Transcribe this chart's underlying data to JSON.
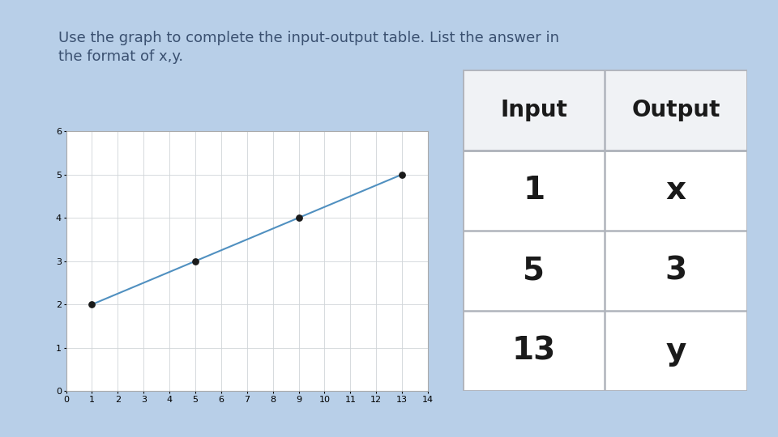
{
  "title": "Use the graph to complete the input-output table. List the answer in\nthe format of x,y.",
  "title_color": "#3a5070",
  "background_color": "#b8cfe8",
  "graph_bg": "#ffffff",
  "graph_border_color": "#cccccc",
  "line_color": "#5090c0",
  "point_color": "#1a1a1a",
  "points_x": [
    1,
    5,
    9,
    13
  ],
  "points_y": [
    2,
    3,
    4,
    5
  ],
  "xlim": [
    0,
    14
  ],
  "ylim": [
    0,
    6
  ],
  "xticks": [
    0,
    1,
    2,
    3,
    4,
    5,
    6,
    7,
    8,
    9,
    10,
    11,
    12,
    13,
    14
  ],
  "yticks": [
    0,
    1,
    2,
    3,
    4,
    5,
    6
  ],
  "table_header": [
    "Input",
    "Output"
  ],
  "table_rows": [
    [
      "1",
      "x"
    ],
    [
      "5",
      "3"
    ],
    [
      "13",
      "y"
    ]
  ],
  "table_bg": "#ffffff",
  "table_border_color": "#b0b4bc",
  "table_header_color": "#1a1a1a",
  "table_cell_color": "#1a1a1a",
  "header_fontsize": 20,
  "cell_fontsize": 28,
  "title_fontsize": 13
}
